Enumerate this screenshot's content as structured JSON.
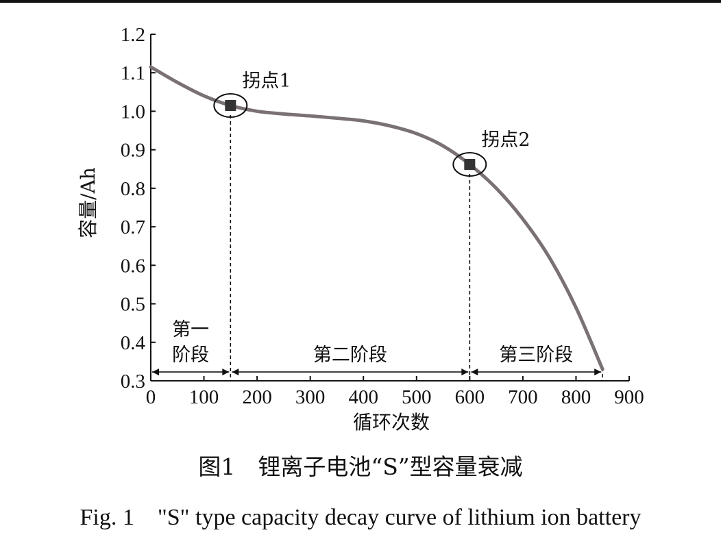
{
  "chart_data": {
    "type": "line",
    "xlabel": "循环次数",
    "ylabel": "容量/Ah",
    "xlim": [
      0,
      900
    ],
    "ylim": [
      0.3,
      1.2
    ],
    "xticks": [
      "0",
      "100",
      "200",
      "300",
      "400",
      "500",
      "600",
      "700",
      "800",
      "900"
    ],
    "yticks": [
      "0.3",
      "0.4",
      "0.5",
      "0.6",
      "0.7",
      "0.8",
      "0.9",
      "1.0",
      "1.1",
      "1.2"
    ],
    "series": [
      {
        "x": [
          0,
          50,
          100,
          150,
          200,
          250,
          300,
          350,
          400,
          450,
          500,
          550,
          600,
          650,
          700,
          750,
          800,
          850
        ],
        "y": [
          1.115,
          1.075,
          1.04,
          1.015,
          1.0,
          0.993,
          0.988,
          0.982,
          0.975,
          0.962,
          0.942,
          0.91,
          0.862,
          0.8,
          0.72,
          0.62,
          0.49,
          0.33
        ]
      }
    ],
    "inflection_points": [
      {
        "label": "拐点1",
        "x": 150,
        "y": 1.015
      },
      {
        "label": "拐点2",
        "x": 600,
        "y": 0.862
      }
    ],
    "stage_boundaries": [
      0,
      150,
      600,
      850
    ],
    "stages": [
      {
        "label_line1": "第一",
        "label_line2": "阶段",
        "from": 0,
        "to": 150
      },
      {
        "label_line1": "第二阶段",
        "label_line2": "",
        "from": 150,
        "to": 600
      },
      {
        "label_line1": "第三阶段",
        "label_line2": "",
        "from": 600,
        "to": 850
      }
    ],
    "colors": {
      "curve": "#7a7174",
      "marker": "#333333",
      "axis": "#111111"
    }
  },
  "caption": {
    "zh": "图1　锂离子电池“S”型容量衰减",
    "en": "Fig. 1　\"S\" type capacity decay curve of lithium ion battery"
  }
}
